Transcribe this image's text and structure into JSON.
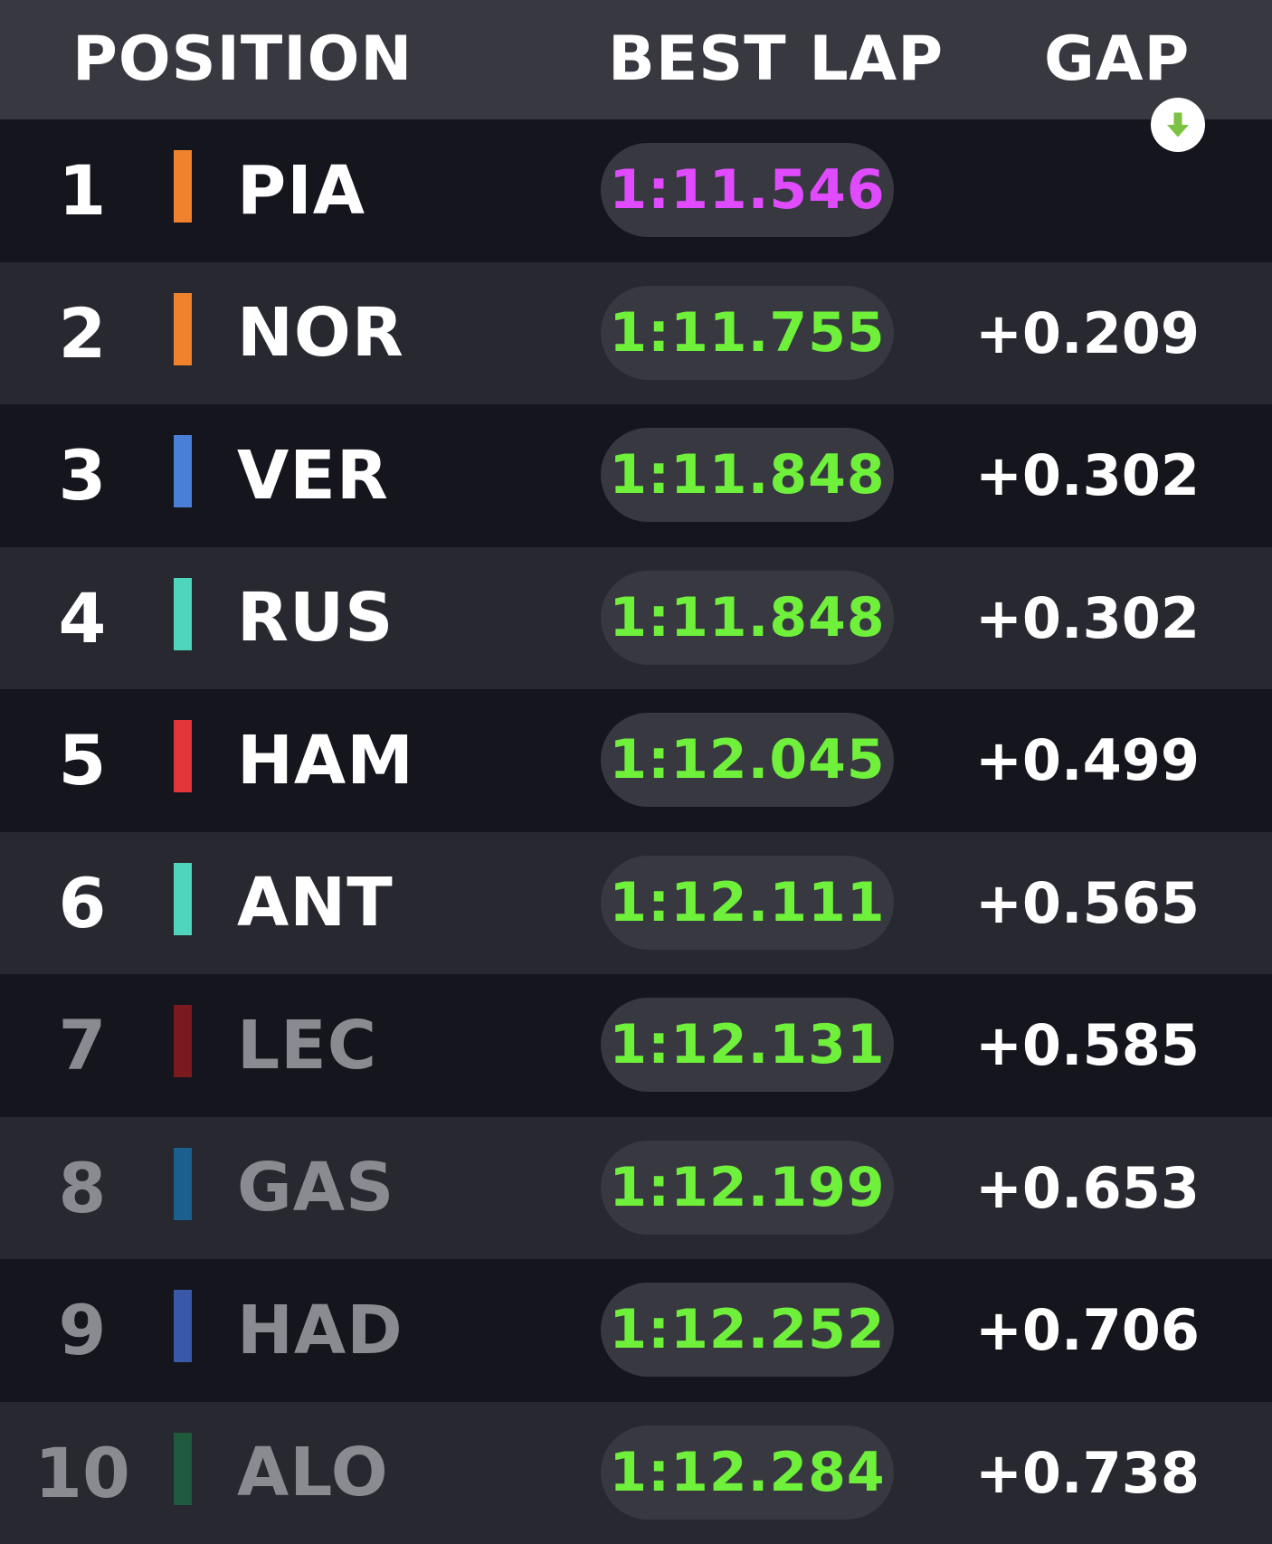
{
  "header": {
    "position_label": "POSITION",
    "best_lap_label": "BEST LAP",
    "gap_label": "GAP",
    "sort_icon": "arrow-down-icon"
  },
  "colors": {
    "fastest_lap": "#e04bff",
    "lap": "#6ff03a",
    "sort_icon": "#7cc242"
  },
  "drivers": [
    {
      "pos": "1",
      "code": "PIA",
      "lap": "1:11.546",
      "gap": "",
      "team_color": "#f0822d",
      "fastest": true,
      "dim": false
    },
    {
      "pos": "2",
      "code": "NOR",
      "lap": "1:11.755",
      "gap": "+0.209",
      "team_color": "#f0822d",
      "fastest": false,
      "dim": false
    },
    {
      "pos": "3",
      "code": "VER",
      "lap": "1:11.848",
      "gap": "+0.302",
      "team_color": "#4a7fd8",
      "fastest": false,
      "dim": false
    },
    {
      "pos": "4",
      "code": "RUS",
      "lap": "1:11.848",
      "gap": "+0.302",
      "team_color": "#4fd5bd",
      "fastest": false,
      "dim": false
    },
    {
      "pos": "5",
      "code": "HAM",
      "lap": "1:12.045",
      "gap": "+0.499",
      "team_color": "#e0363a",
      "fastest": false,
      "dim": false
    },
    {
      "pos": "6",
      "code": "ANT",
      "lap": "1:12.111",
      "gap": "+0.565",
      "team_color": "#4fd5bd",
      "fastest": false,
      "dim": false
    },
    {
      "pos": "7",
      "code": "LEC",
      "lap": "1:12.131",
      "gap": "+0.585",
      "team_color": "#7a1a1e",
      "fastest": false,
      "dim": true
    },
    {
      "pos": "8",
      "code": "GAS",
      "lap": "1:12.199",
      "gap": "+0.653",
      "team_color": "#1b5f8e",
      "fastest": false,
      "dim": true
    },
    {
      "pos": "9",
      "code": "HAD",
      "lap": "1:12.252",
      "gap": "+0.706",
      "team_color": "#3a58a8",
      "fastest": false,
      "dim": true
    },
    {
      "pos": "10",
      "code": "ALO",
      "lap": "1:12.284",
      "gap": "+0.738",
      "team_color": "#1f5a3c",
      "fastest": false,
      "dim": true
    }
  ]
}
